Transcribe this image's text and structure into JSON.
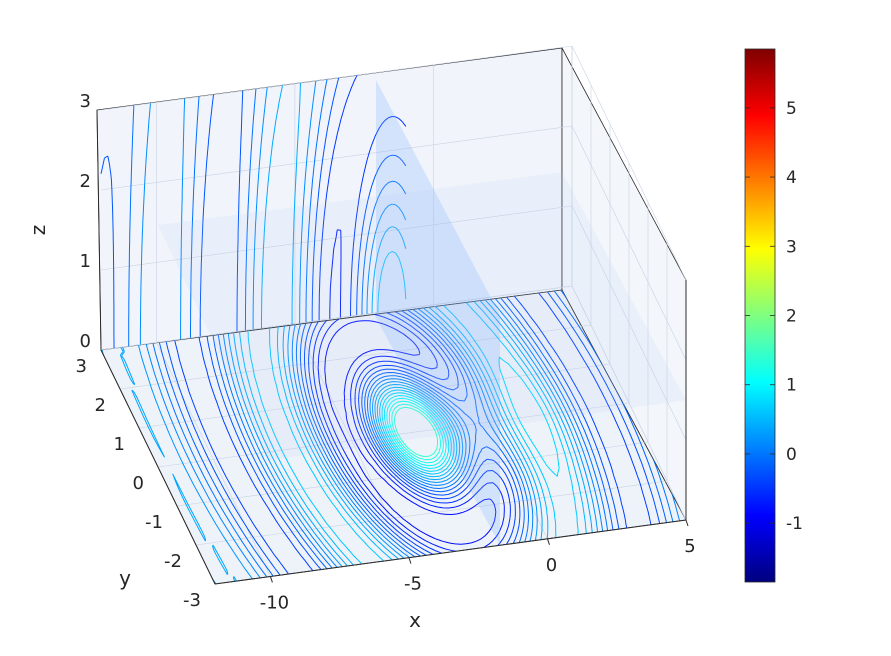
{
  "chart_data": {
    "type": "contour3d",
    "title": "",
    "xlabel": "x",
    "ylabel": "y",
    "zlabel": "z",
    "xlim": [
      -12,
      5
    ],
    "ylim": [
      -3,
      3
    ],
    "zlim": [
      0,
      3
    ],
    "x_ticks": [
      {
        "value": -10,
        "label": "-10"
      },
      {
        "value": -5,
        "label": "-5"
      },
      {
        "value": 0,
        "label": "0"
      },
      {
        "value": 5,
        "label": "5"
      }
    ],
    "y_ticks": [
      {
        "value": -3,
        "label": "-3"
      },
      {
        "value": -2,
        "label": "-2"
      },
      {
        "value": -1,
        "label": "-1"
      },
      {
        "value": 0,
        "label": "0"
      },
      {
        "value": 1,
        "label": "1"
      },
      {
        "value": 2,
        "label": "2"
      },
      {
        "value": 3,
        "label": "3"
      }
    ],
    "z_ticks": [
      {
        "value": 0,
        "label": "0"
      },
      {
        "value": 1,
        "label": "1"
      },
      {
        "value": 2,
        "label": "2"
      },
      {
        "value": 3,
        "label": "3"
      }
    ],
    "grid": true,
    "colormap": "jet",
    "colorbar": {
      "location": "right",
      "limits": [
        -1.85,
        5.85
      ],
      "ticks": [
        {
          "value": -1,
          "label": "-1"
        },
        {
          "value": 0,
          "label": "0"
        },
        {
          "value": 1,
          "label": "1"
        },
        {
          "value": 2,
          "label": "2"
        },
        {
          "value": 3,
          "label": "3"
        },
        {
          "value": 4,
          "label": "4"
        },
        {
          "value": 5,
          "label": "5"
        }
      ]
    },
    "slice_planes": [
      {
        "axis": "x",
        "value": -2
      },
      {
        "axis": "z",
        "value": 1.5
      }
    ]
  }
}
